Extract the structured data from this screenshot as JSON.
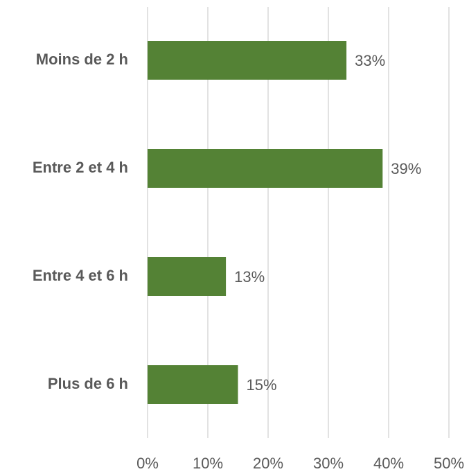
{
  "chart_data": {
    "type": "bar",
    "orientation": "horizontal",
    "categories": [
      "Moins de 2 h",
      "Entre 2 et 4 h",
      "Entre 4 et 6 h",
      "Plus de 6 h"
    ],
    "values": [
      33,
      39,
      13,
      15
    ],
    "value_labels": [
      "33%",
      "39%",
      "13%",
      "15%"
    ],
    "color": "#548235",
    "xlim": [
      0,
      50
    ],
    "xticks": [
      {
        "value": 0,
        "label": "0%"
      },
      {
        "value": 10,
        "label": "10%"
      },
      {
        "value": 20,
        "label": "20%"
      },
      {
        "value": 30,
        "label": "30%"
      },
      {
        "value": 40,
        "label": "40%"
      },
      {
        "value": 50,
        "label": "50%"
      }
    ],
    "grid": true
  }
}
